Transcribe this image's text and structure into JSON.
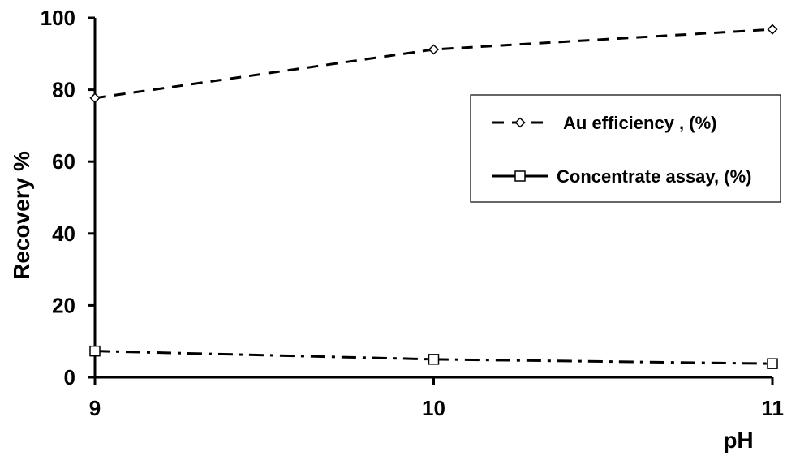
{
  "chart_data": {
    "type": "line",
    "x": [
      9,
      10,
      11
    ],
    "series": [
      {
        "name": "Au efficiency , (%)",
        "values": [
          77.7,
          91.2,
          96.8
        ],
        "marker": "diamond",
        "line_style": "dashed"
      },
      {
        "name": "Concentrate assay, (%)",
        "values": [
          7.3,
          5.0,
          3.8
        ],
        "marker": "square",
        "line_style": "dash-dot"
      }
    ],
    "title": "",
    "xlabel": "pH",
    "ylabel": "Recovery %",
    "xlim": [
      9,
      11
    ],
    "ylim": [
      0,
      100
    ],
    "x_ticks": [
      "9",
      "10",
      "11"
    ],
    "y_ticks": [
      "0",
      "20",
      "40",
      "60",
      "80",
      "100"
    ],
    "grid": false,
    "legend_position": "right",
    "colors": {
      "line": "#000000",
      "marker_fill": "#ffffff",
      "background": "#ffffff"
    }
  }
}
